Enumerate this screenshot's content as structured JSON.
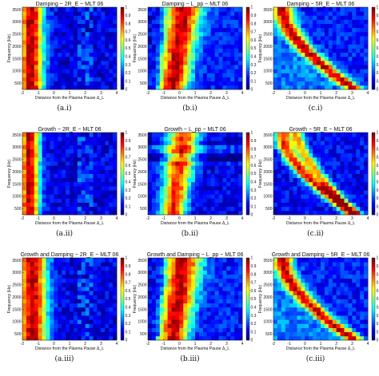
{
  "chart_data": [
    {
      "id": "a-i",
      "type": "heatmap",
      "title": "Damping ~ 2R_E ~ MLT 06",
      "caption": "(a.i)",
      "xlabel": "Distance from the Plasma Pause Δ_L",
      "ylabel": "Frequency (Hz)",
      "xlim": [
        -2,
        4
      ],
      "ylim": [
        250,
        3600
      ],
      "xticks": [
        -2,
        -1,
        0,
        1,
        2,
        3,
        4
      ],
      "yticks": [
        500,
        1000,
        1500,
        2000,
        2500,
        3000,
        3500
      ],
      "colorbar": {
        "range": [
          0,
          1
        ],
        "ticks": [
          0,
          0.1,
          0.2,
          0.3,
          0.4,
          0.5,
          0.6,
          0.7,
          0.8,
          0.9,
          1
        ]
      },
      "pattern": "band_left",
      "band_center_x": -1.45,
      "band_width": 0.55
    },
    {
      "id": "b-i",
      "type": "heatmap",
      "title": "Damping ~ L_pp ~ MLT 06",
      "caption": "(b.i)",
      "xlabel": "Distance from the Plasma Pause Δ_L",
      "ylabel": "Frequency (Hz)",
      "xlim": [
        -2,
        4
      ],
      "ylim": [
        250,
        3600
      ],
      "xticks": [
        -2,
        -1,
        0,
        1,
        2,
        3,
        4
      ],
      "yticks": [
        500,
        1000,
        1500,
        2000,
        2500,
        3000,
        3500
      ],
      "colorbar": {
        "range": [
          0,
          1
        ],
        "ticks": [
          0,
          0.1,
          0.2,
          0.3,
          0.4,
          0.5,
          0.6,
          0.7,
          0.8,
          0.9,
          1
        ]
      },
      "pattern": "wedge"
    },
    {
      "id": "c-i",
      "type": "heatmap",
      "title": "Damping ~ 5R_E ~ MLT 06",
      "caption": "(c.i)",
      "xlabel": "Distance from the Plasma Pause Δ_L",
      "ylabel": "Frequency (Hz)",
      "xlim": [
        -2,
        4
      ],
      "ylim": [
        250,
        3600
      ],
      "xticks": [
        -2,
        -1,
        0,
        1,
        2,
        3,
        4
      ],
      "yticks": [
        500,
        1000,
        1500,
        2000,
        2500,
        3000,
        3500
      ],
      "colorbar": {
        "range": [
          0,
          1
        ],
        "ticks": [
          0,
          0.1,
          0.2,
          0.3,
          0.4,
          0.5,
          0.6,
          0.7,
          0.8,
          0.9,
          1
        ]
      },
      "pattern": "arc_single"
    },
    {
      "id": "a-ii",
      "type": "heatmap",
      "title": "Growth ~ 2R_E ~ MLT 06",
      "caption": "(a.ii)",
      "xlabel": "Distance from the Plasma Pause Δ_L",
      "ylabel": "Frequency (Hz)",
      "xlim": [
        -2,
        4
      ],
      "ylim": [
        250,
        3600
      ],
      "xticks": [
        -2,
        -1,
        0,
        1,
        2,
        3,
        4
      ],
      "yticks": [
        500,
        1000,
        1500,
        2000,
        2500,
        3000,
        3500
      ],
      "colorbar": {
        "range": [
          0,
          1
        ],
        "ticks": [
          0,
          0.1,
          0.2,
          0.3,
          0.4,
          0.5,
          0.6,
          0.7,
          0.8,
          0.9,
          1
        ]
      },
      "pattern": "band_left",
      "band_center_x": -1.55,
      "band_width": 0.45
    },
    {
      "id": "b-ii",
      "type": "heatmap",
      "title": "Growth ~ L_pp ~ MLT 06",
      "caption": "(b.ii)",
      "xlabel": "Distance from the Plasma Pause Δ_L",
      "ylabel": "Frequency (Hz)",
      "xlim": [
        -2,
        4
      ],
      "ylim": [
        250,
        3600
      ],
      "xticks": [
        -2,
        -1,
        0,
        1,
        2,
        3,
        4
      ],
      "yticks": [
        500,
        1000,
        1500,
        2000,
        2500,
        3000,
        3500
      ],
      "colorbar": {
        "range": [
          0,
          1
        ],
        "ticks": [
          0,
          0.1,
          0.2,
          0.3,
          0.4,
          0.5,
          0.6,
          0.7,
          0.8,
          0.9,
          1
        ]
      },
      "pattern": "wedge_growth"
    },
    {
      "id": "c-ii",
      "type": "heatmap",
      "title": "Growth ~ 5R_E ~ MLT 06",
      "caption": "(c.ii)",
      "xlabel": "Distance from the Plasma Pause Δ_L",
      "ylabel": "Frequency (Hz)",
      "xlim": [
        -2,
        4
      ],
      "ylim": [
        250,
        3600
      ],
      "xticks": [
        -2,
        -1,
        0,
        1,
        2,
        3,
        4
      ],
      "yticks": [
        500,
        1000,
        1500,
        2000,
        2500,
        3000,
        3500
      ],
      "colorbar": {
        "range": [
          0,
          1
        ],
        "ticks": [
          0,
          0.1,
          0.2,
          0.3,
          0.4,
          0.5,
          0.6,
          0.7,
          0.8,
          0.9,
          1
        ]
      },
      "pattern": "arc_double"
    },
    {
      "id": "a-iii",
      "type": "heatmap",
      "title": "Growth and Damping ~ 2R_E ~ MLT 06",
      "caption": "(a.iii)",
      "xlabel": "Distance from the Plasma Pause Δ_L",
      "ylabel": "Frequency (Hz)",
      "xlim": [
        -2,
        4
      ],
      "ylim": [
        250,
        3600
      ],
      "xticks": [
        -2,
        -1,
        0,
        1,
        2,
        3,
        4
      ],
      "yticks": [
        500,
        1000,
        1500,
        2000,
        2500,
        3000,
        3500
      ],
      "colorbar": {
        "range": [
          0,
          1
        ],
        "ticks": [
          0,
          0.1,
          0.2,
          0.3,
          0.4,
          0.5,
          0.6,
          0.7,
          0.8,
          0.9,
          1
        ]
      },
      "pattern": "band_left",
      "band_center_x": -1.35,
      "band_width": 0.65
    },
    {
      "id": "b-iii",
      "type": "heatmap",
      "title": "Growth and Damping ~ L_pp ~ MLT 06",
      "caption": "(b.iii)",
      "xlabel": "Distance from the Plasma Pause Δ_L",
      "ylabel": "Frequency (Hz)",
      "xlim": [
        -2,
        4
      ],
      "ylim": [
        250,
        3600
      ],
      "xticks": [
        -2,
        -1,
        0,
        1,
        2,
        3,
        4
      ],
      "yticks": [
        500,
        1000,
        1500,
        2000,
        2500,
        3000,
        3500
      ],
      "colorbar": {
        "range": [
          0,
          1
        ],
        "ticks": [
          0,
          0.1,
          0.2,
          0.3,
          0.4,
          0.5,
          0.6,
          0.7,
          0.8,
          0.9,
          1
        ]
      },
      "pattern": "wedge"
    },
    {
      "id": "c-iii",
      "type": "heatmap",
      "title": "Growth and Damping ~ 5R_E ~ MLT 06",
      "caption": "(c.iii)",
      "xlabel": "Distance from the Plasma Pause Δ_L",
      "ylabel": "Frequency (Hz)",
      "xlim": [
        -2,
        4
      ],
      "ylim": [
        250,
        3600
      ],
      "xticks": [
        -2,
        -1,
        0,
        1,
        2,
        3,
        4
      ],
      "yticks": [
        500,
        1000,
        1500,
        2000,
        2500,
        3000,
        3500
      ],
      "colorbar": {
        "range": [
          0,
          1
        ],
        "ticks": [
          0,
          0.1,
          0.2,
          0.3,
          0.4,
          0.5,
          0.6,
          0.7,
          0.8,
          0.9,
          1
        ]
      },
      "pattern": "arc_single"
    }
  ]
}
